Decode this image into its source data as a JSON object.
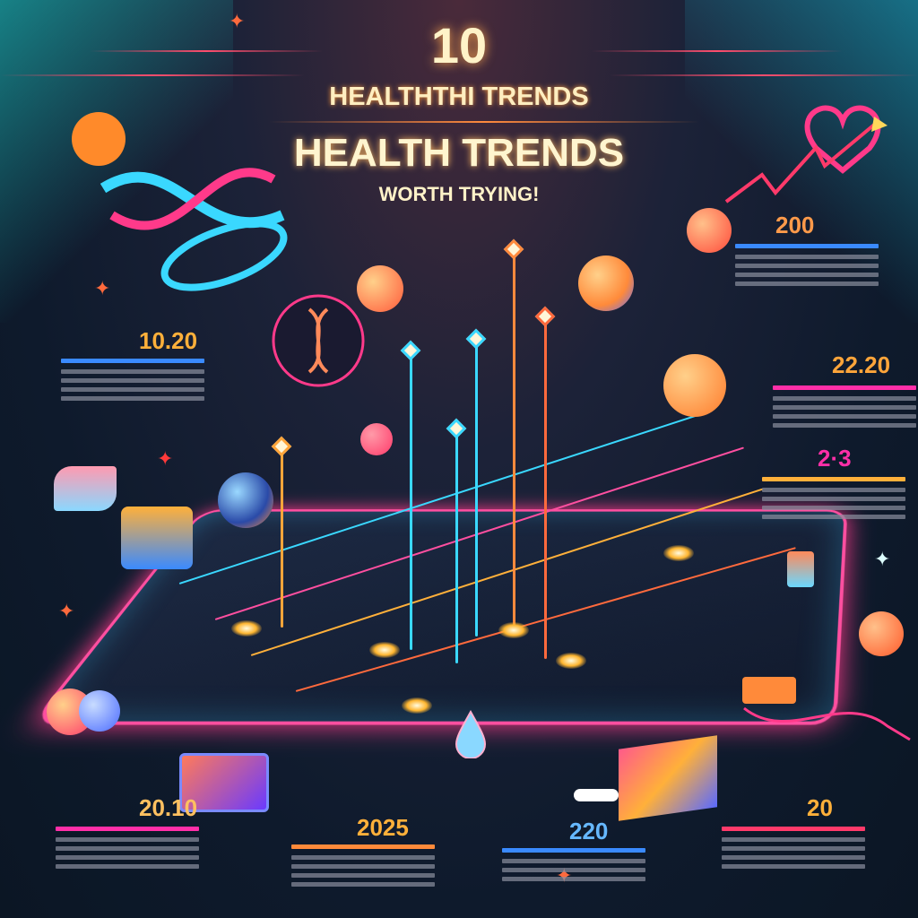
{
  "title": {
    "number": "10",
    "line1": "HEALTHTHI TRENDS",
    "line2": "HEALTH TRENDS",
    "line3": "WORTH TRYING!"
  },
  "stats": [
    {
      "value": "200",
      "color": "#ff9a4a"
    },
    {
      "value": "10.20",
      "color": "#ffb03a"
    },
    {
      "value": "22.20",
      "color": "#ffa53a"
    },
    {
      "value": "2·3",
      "color": "#ff2fa8"
    },
    {
      "value": "20.10",
      "color": "#ffc060"
    },
    {
      "value": "2025",
      "color": "#ffb03a"
    },
    {
      "value": "220",
      "color": "#66b8ff"
    },
    {
      "value": "20",
      "color": "#ffb03a"
    }
  ],
  "icons": [
    "dna-icon",
    "heart-trend-icon",
    "globe-icon",
    "pill-bottle-icon",
    "hand-icon",
    "water-drop-icon",
    "tablet-icon",
    "pills-icon",
    "sneaker-icon",
    "book-icon"
  ],
  "colors": {
    "background": "#0f1a2e",
    "accent_pink": "#ff3a8a",
    "accent_orange": "#ffa53a",
    "accent_cyan": "#3ad8ff"
  }
}
